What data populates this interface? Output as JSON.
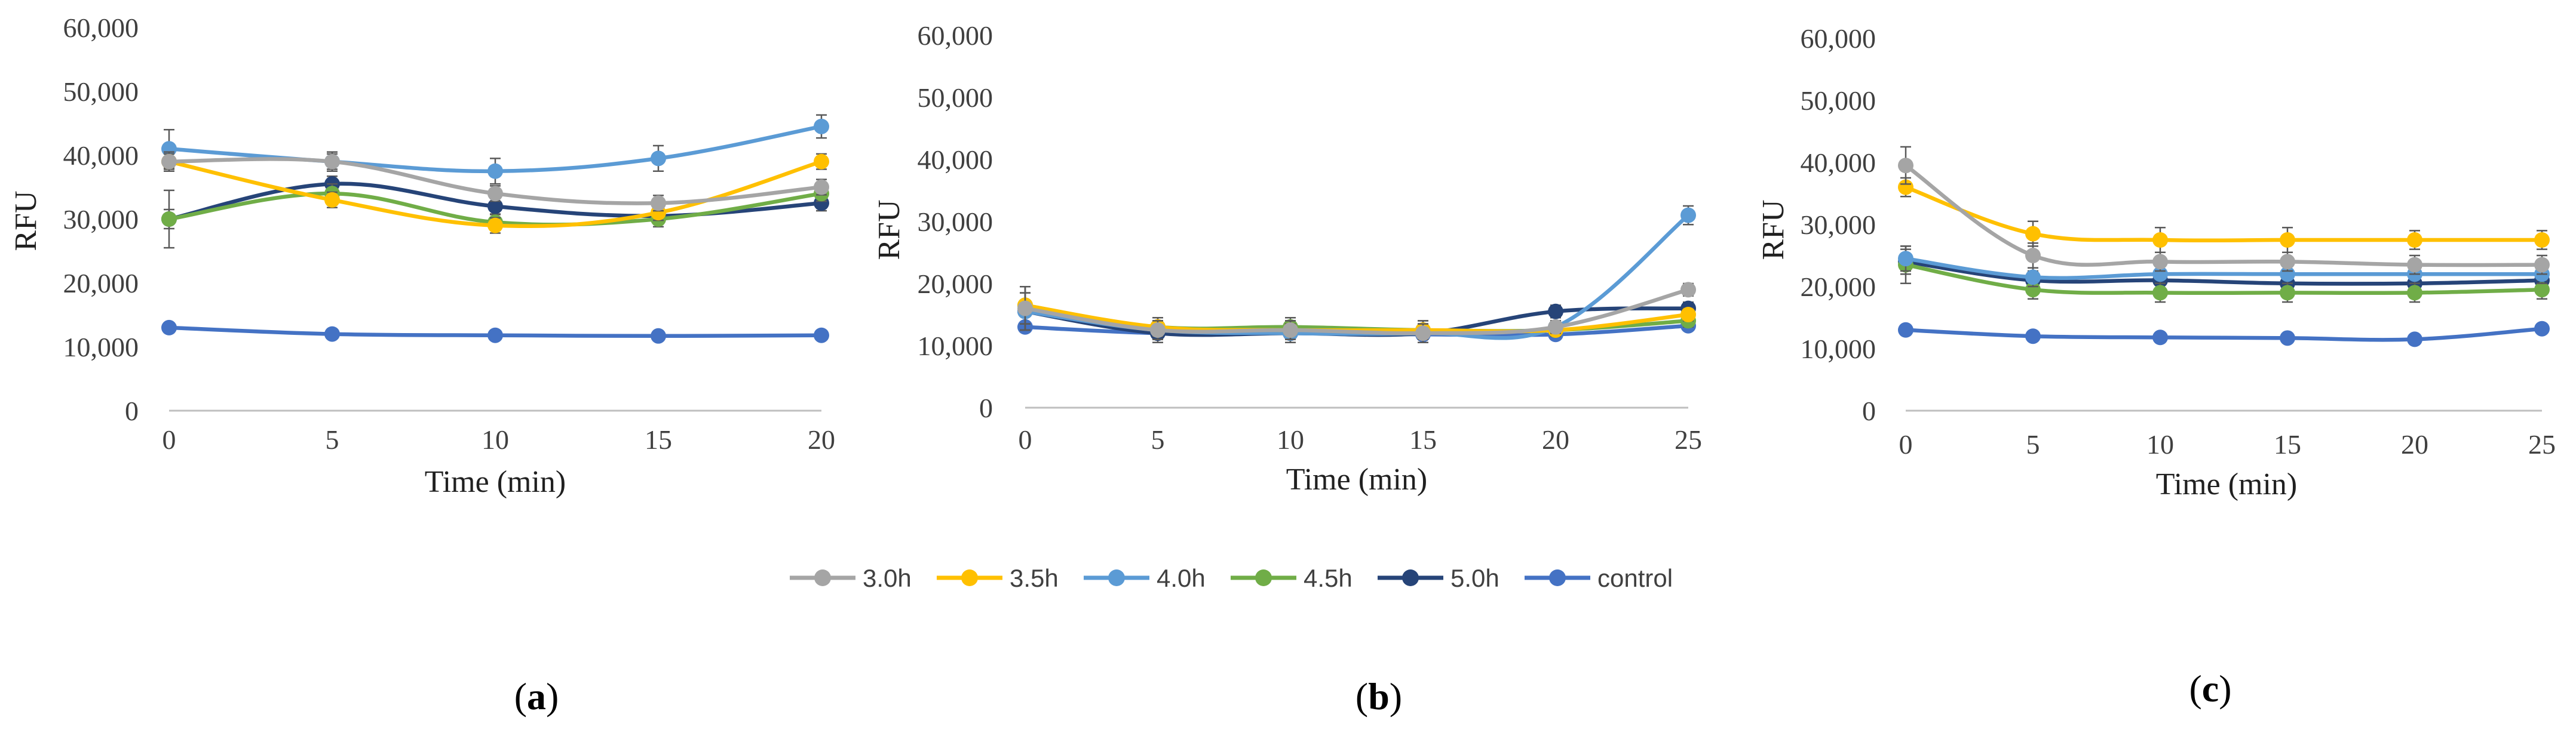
{
  "figure": {
    "legend_series_order": [
      "3.0h",
      "3.5h",
      "4.0h",
      "4.5h",
      "5.0h",
      "control"
    ],
    "colors": {
      "3.0h": "#a5a5a5",
      "3.5h": "#ffc000",
      "4.0h": "#5b9bd5",
      "4.5h": "#70ad47",
      "5.0h": "#264478",
      "control": "#4472c4"
    }
  },
  "chart_data": [
    {
      "type": "line",
      "panel_label_open": "(",
      "panel_letter": "a",
      "panel_label_close": ")",
      "xlabel": "Time (min)",
      "ylabel": "RFU",
      "x": [
        0,
        5,
        10,
        15,
        20
      ],
      "xlim": [
        0,
        20
      ],
      "ylim": [
        0,
        60000
      ],
      "yticks": [
        0,
        10000,
        20000,
        30000,
        40000,
        50000,
        60000
      ],
      "ytick_labels": [
        "0",
        "10,000",
        "20,000",
        "30,000",
        "40,000",
        "50,000",
        "60,000"
      ],
      "xtick_labels": [
        "0",
        "5",
        "10",
        "15",
        "20"
      ],
      "series": [
        {
          "name": "3.0h",
          "values": [
            39000,
            39000,
            34000,
            32500,
            35000
          ],
          "errors": [
            1500,
            1200,
            1200,
            1200,
            1200
          ]
        },
        {
          "name": "3.5h",
          "values": [
            39000,
            33000,
            29000,
            31000,
            39000
          ],
          "errors": [
            1200,
            1200,
            1200,
            1200,
            1200
          ]
        },
        {
          "name": "4.0h",
          "values": [
            41000,
            39000,
            37500,
            39500,
            44500
          ],
          "errors": [
            3000,
            1500,
            2000,
            2000,
            1800
          ]
        },
        {
          "name": "4.5h",
          "values": [
            30000,
            34000,
            29500,
            30000,
            34000
          ],
          "errors": [
            4500,
            1500,
            1200,
            1200,
            1200
          ]
        },
        {
          "name": "5.0h",
          "values": [
            30000,
            35500,
            32000,
            30500,
            32500
          ],
          "errors": [
            1500,
            1200,
            1200,
            1200,
            1200
          ]
        },
        {
          "name": "control",
          "values": [
            13000,
            12000,
            11800,
            11700,
            11800
          ],
          "errors": [
            0,
            0,
            0,
            0,
            0
          ]
        }
      ]
    },
    {
      "type": "line",
      "panel_label_open": "(",
      "panel_letter": "b",
      "panel_label_close": ")",
      "xlabel": "Time (min)",
      "ylabel": "RFU",
      "x": [
        0,
        5,
        10,
        15,
        20,
        25
      ],
      "xlim": [
        0,
        25
      ],
      "ylim": [
        0,
        60000
      ],
      "yticks": [
        0,
        10000,
        20000,
        30000,
        40000,
        50000,
        60000
      ],
      "ytick_labels": [
        "0",
        "10,000",
        "20,000",
        "30,000",
        "40,000",
        "50,000",
        "60,000"
      ],
      "xtick_labels": [
        "0",
        "5",
        "10",
        "15",
        "20",
        "25"
      ],
      "series": [
        {
          "name": "3.0h",
          "values": [
            16000,
            12500,
            12500,
            12000,
            13000,
            19000
          ],
          "errors": [
            3500,
            1500,
            1500,
            1500,
            1000,
            1000
          ]
        },
        {
          "name": "3.5h",
          "values": [
            16500,
            13000,
            12500,
            12500,
            12500,
            15000
          ],
          "errors": [
            3000,
            1500,
            1500,
            1500,
            1000,
            1000
          ]
        },
        {
          "name": "4.0h",
          "values": [
            15500,
            12500,
            12000,
            12000,
            13000,
            31000
          ],
          "errors": [
            3000,
            1500,
            1500,
            1500,
            1000,
            1500
          ]
        },
        {
          "name": "4.5h",
          "values": [
            16500,
            13000,
            13000,
            12500,
            12500,
            14000
          ],
          "errors": [
            3000,
            1500,
            1500,
            1500,
            1000,
            1000
          ]
        },
        {
          "name": "5.0h",
          "values": [
            15500,
            12000,
            12000,
            12000,
            15500,
            16000
          ],
          "errors": [
            3000,
            1500,
            1500,
            1500,
            1000,
            1000
          ]
        },
        {
          "name": "control",
          "values": [
            13000,
            12000,
            12000,
            11800,
            11800,
            13200
          ],
          "errors": [
            0,
            0,
            0,
            0,
            0,
            0
          ]
        }
      ]
    },
    {
      "type": "line",
      "panel_label_open": "(",
      "panel_letter": "c",
      "panel_label_close": ")",
      "xlabel": "Time (min)",
      "ylabel": "RFU",
      "x": [
        0,
        5,
        10,
        15,
        20,
        25
      ],
      "xlim": [
        0,
        25
      ],
      "ylim": [
        0,
        60000
      ],
      "yticks": [
        0,
        10000,
        20000,
        30000,
        40000,
        50000,
        60000
      ],
      "ytick_labels": [
        "0",
        "10,000",
        "20,000",
        "30,000",
        "40,000",
        "50,000",
        "60,000"
      ],
      "xtick_labels": [
        "0",
        "5",
        "10",
        "15",
        "20",
        "25"
      ],
      "series": [
        {
          "name": "3.0h",
          "values": [
            39500,
            25000,
            24000,
            24000,
            23500,
            23500
          ],
          "errors": [
            3000,
            2000,
            1500,
            1500,
            1500,
            1500
          ]
        },
        {
          "name": "3.5h",
          "values": [
            36000,
            28500,
            27500,
            27500,
            27500,
            27500
          ],
          "errors": [
            1500,
            2000,
            2000,
            2000,
            1500,
            1500
          ]
        },
        {
          "name": "4.0h",
          "values": [
            24500,
            21500,
            22000,
            22000,
            22000,
            22000
          ],
          "errors": [
            2000,
            1500,
            1500,
            1500,
            1500,
            1500
          ]
        },
        {
          "name": "4.5h",
          "values": [
            23500,
            19500,
            19000,
            19000,
            19000,
            19500
          ],
          "errors": [
            3000,
            1500,
            1500,
            1500,
            1500,
            1500
          ]
        },
        {
          "name": "5.0h",
          "values": [
            24000,
            21000,
            21000,
            20500,
            20500,
            21000
          ],
          "errors": [
            2000,
            1500,
            1500,
            1500,
            1500,
            1500
          ]
        },
        {
          "name": "control",
          "values": [
            13000,
            12000,
            11800,
            11700,
            11500,
            13200
          ],
          "errors": [
            0,
            0,
            0,
            0,
            0,
            0
          ]
        }
      ]
    }
  ]
}
